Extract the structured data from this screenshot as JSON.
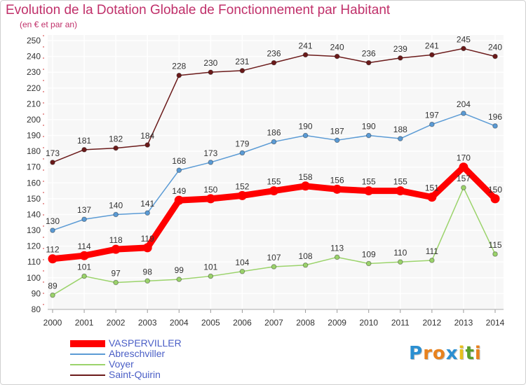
{
  "header": {
    "title": "Evolution de la Dotation Globale de Fonctionnement par Habitant",
    "subtitle": "(en € et par an)"
  },
  "logo": {
    "text": "Proxiti",
    "letters": [
      "P",
      "r",
      "o",
      "x",
      "i",
      "t",
      "i"
    ],
    "colors": [
      "#2b8fd1",
      "#e8821e",
      "#e8821e",
      "#2b8fd1",
      "#e8c01e",
      "#5aa02c",
      "#e8821e"
    ]
  },
  "colors": {
    "background": "#f7f7f7",
    "grid": "#ffffff",
    "axis_text": "#333333",
    "label_text": "#333333",
    "title": "#c0306a"
  },
  "chart_data": {
    "type": "line",
    "title": "Evolution de la Dotation Globale de Fonctionnement par Habitant",
    "subtitle": "(en € et par an)",
    "xlabel": "",
    "ylabel": "",
    "x": [
      "2000",
      "2001",
      "2002",
      "2003",
      "2004",
      "2005",
      "2006",
      "2007",
      "2008",
      "2009",
      "2010",
      "2011",
      "2012",
      "2013",
      "2014"
    ],
    "ylim": [
      80,
      250
    ],
    "yticks": [
      80,
      90,
      100,
      110,
      120,
      130,
      140,
      150,
      160,
      170,
      180,
      190,
      200,
      210,
      220,
      230,
      240,
      250
    ],
    "grid": true,
    "legend_position": "bottom-left",
    "series": [
      {
        "name": "VASPERVILLER",
        "color": "#ff0000",
        "width": "heavy",
        "values": [
          112,
          114,
          118,
          119,
          149,
          150,
          152,
          155,
          158,
          156,
          155,
          155,
          151,
          170,
          150
        ]
      },
      {
        "name": "Abreschviller",
        "color": "#5b9bd5",
        "width": "thin",
        "values": [
          130,
          137,
          140,
          141,
          168,
          173,
          179,
          186,
          190,
          187,
          190,
          188,
          197,
          204,
          196
        ]
      },
      {
        "name": "Voyer",
        "color": "#9bd36b",
        "width": "thin",
        "values": [
          89,
          101,
          97,
          98,
          99,
          101,
          104,
          107,
          108,
          113,
          109,
          110,
          111,
          157,
          115
        ]
      },
      {
        "name": "Saint-Quirin",
        "color": "#6b1a1a",
        "width": "thin",
        "values": [
          173,
          181,
          182,
          184,
          228,
          230,
          231,
          236,
          241,
          240,
          236,
          239,
          241,
          245,
          240
        ]
      }
    ]
  }
}
